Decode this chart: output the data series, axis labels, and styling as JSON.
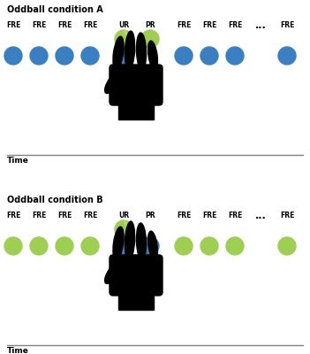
{
  "panel_A_title": "Oddball condition ",
  "panel_A_title_bold": "Oddball condition ",
  "panel_A_letter": "A",
  "panel_B_letter": "B",
  "panel_B_title": "Oddball condition ",
  "blue": "#3a7fc1",
  "green": "#9ecf52",
  "arrow_blue": "#4a90c4",
  "arrow_green": "#c8d87a",
  "time_label": "Time",
  "labels": [
    "FRE",
    "FRE",
    "FRE",
    "FRE",
    "UR",
    "PR",
    "FRE",
    "FRE",
    "FRE",
    "...",
    "FRE"
  ],
  "n_cols": 11,
  "dot_r": 10,
  "background": "#ffffff"
}
